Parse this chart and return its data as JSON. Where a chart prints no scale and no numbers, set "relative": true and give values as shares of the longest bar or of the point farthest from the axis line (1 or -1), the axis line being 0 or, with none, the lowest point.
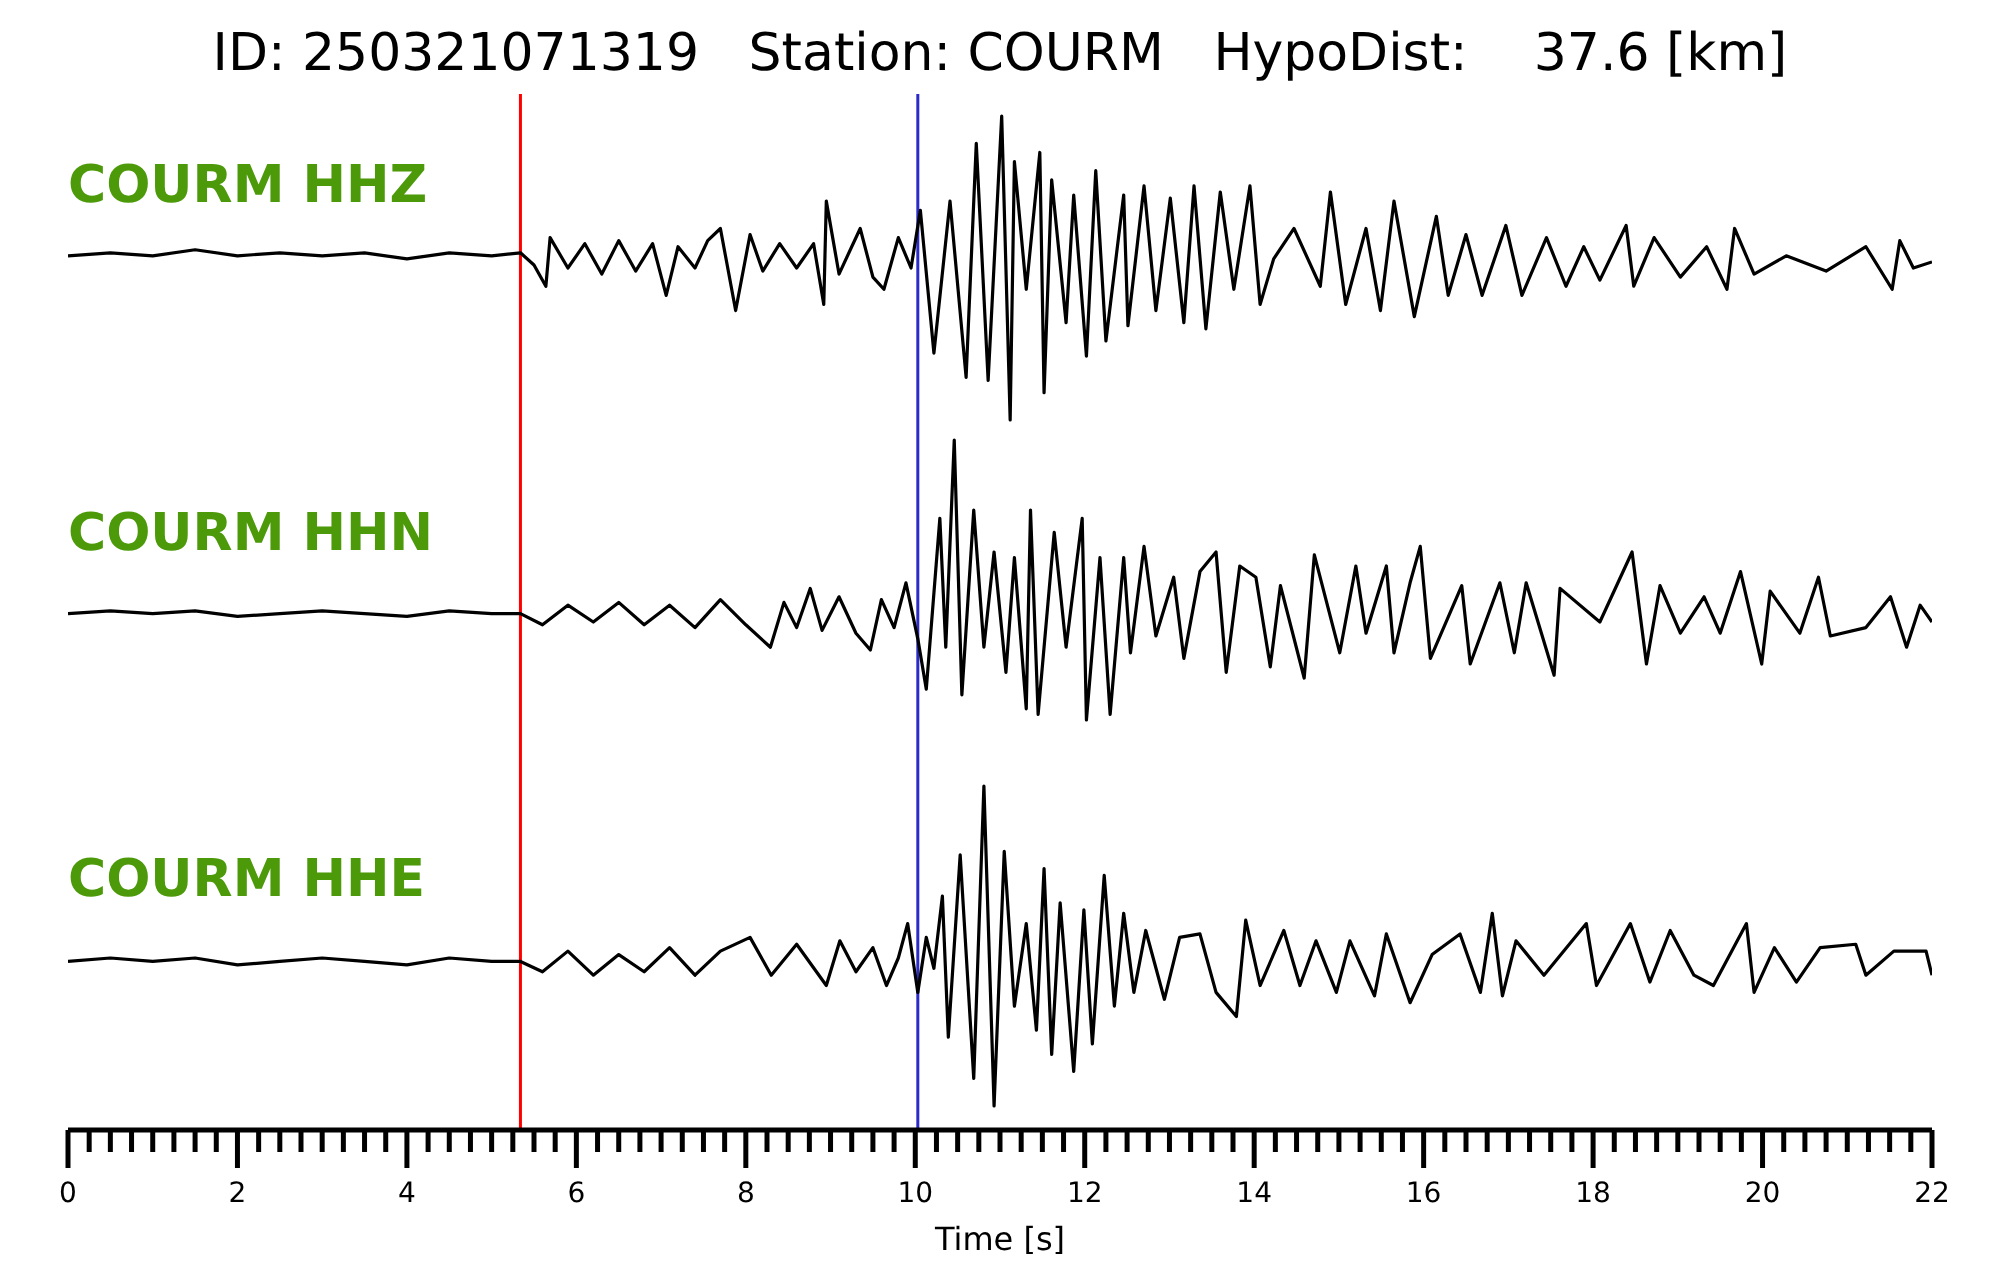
{
  "chart_data": [
    {
      "type": "line",
      "title": "ID: 250321071319   Station: COURM   HypoDist:    37.6 [km]",
      "relative": true,
      "xlim": [
        0,
        22
      ],
      "tick_labels": false,
      "ref_lines": [
        {
          "axis": "x",
          "value": 5.34,
          "color": "#ff0000"
        },
        {
          "axis": "x",
          "value": 10.03,
          "color": "#2b2bc8"
        }
      ],
      "series": [
        {
          "name": "COURM HHZ",
          "color": "#000000",
          "x": [
            0,
            0.5,
            1,
            1.5,
            2,
            2.5,
            3,
            3.5,
            4,
            4.5,
            5,
            5.34,
            5.5,
            5.64,
            5.69,
            5.9,
            6.1,
            6.3,
            6.5,
            6.7,
            6.9,
            7.06,
            7.2,
            7.4,
            7.55,
            7.7,
            7.88,
            8.05,
            8.2,
            8.4,
            8.6,
            8.8,
            8.92,
            8.95,
            9.1,
            9.35,
            9.5,
            9.63,
            9.8,
            9.95,
            10.06,
            10.22,
            10.41,
            10.6,
            10.72,
            10.86,
            11.02,
            11.12,
            11.17,
            11.31,
            11.47,
            11.52,
            11.61,
            11.78,
            11.87,
            12.02,
            12.13,
            12.25,
            12.46,
            12.51,
            12.7,
            12.84,
            13.01,
            13.17,
            13.29,
            13.43,
            13.6,
            13.76,
            13.95,
            14.07,
            14.23,
            14.47,
            14.78,
            14.9,
            15.08,
            15.32,
            15.49,
            15.65,
            15.89,
            16.15,
            16.29,
            16.5,
            16.69,
            16.97,
            17.16,
            17.45,
            17.68,
            17.89,
            18.08,
            18.39,
            18.48,
            18.72,
            19.03,
            19.34,
            19.58,
            19.67,
            19.9,
            20.28,
            20.75,
            21.22,
            21.53,
            21.62,
            21.78,
            22
          ],
          "values": [
            0.54,
            0.55,
            0.54,
            0.56,
            0.54,
            0.55,
            0.54,
            0.55,
            0.53,
            0.55,
            0.54,
            0.55,
            0.51,
            0.44,
            0.6,
            0.5,
            0.58,
            0.48,
            0.59,
            0.49,
            0.58,
            0.41,
            0.57,
            0.5,
            0.59,
            0.63,
            0.36,
            0.61,
            0.49,
            0.58,
            0.5,
            0.58,
            0.38,
            0.72,
            0.48,
            0.63,
            0.47,
            0.43,
            0.6,
            0.5,
            0.69,
            0.22,
            0.72,
            0.14,
            0.91,
            0.13,
            1,
            0,
            0.85,
            0.43,
            0.88,
            0.09,
            0.79,
            0.32,
            0.74,
            0.21,
            0.82,
            0.26,
            0.74,
            0.31,
            0.77,
            0.36,
            0.73,
            0.32,
            0.77,
            0.3,
            0.75,
            0.43,
            0.77,
            0.38,
            0.53,
            0.63,
            0.44,
            0.75,
            0.38,
            0.63,
            0.36,
            0.72,
            0.34,
            0.67,
            0.41,
            0.61,
            0.41,
            0.64,
            0.41,
            0.6,
            0.44,
            0.57,
            0.46,
            0.64,
            0.44,
            0.6,
            0.47,
            0.57,
            0.43,
            0.63,
            0.48,
            0.54,
            0.49,
            0.57,
            0.43,
            0.59,
            0.5,
            0.52
          ]
        }
      ]
    },
    {
      "type": "line",
      "relative": true,
      "xlim": [
        0,
        22
      ],
      "tick_labels": false,
      "ref_lines": [
        {
          "axis": "x",
          "value": 5.34,
          "color": "#ff0000"
        },
        {
          "axis": "x",
          "value": 10.03,
          "color": "#2b2bc8"
        }
      ],
      "series": [
        {
          "name": "COURM HHN",
          "color": "#000000",
          "x": [
            0,
            0.5,
            1,
            1.5,
            2,
            2.5,
            3,
            3.5,
            4,
            4.5,
            5,
            5.34,
            5.6,
            5.9,
            6.2,
            6.5,
            6.8,
            7.1,
            7.4,
            7.7,
            8.0,
            8.29,
            8.45,
            8.6,
            8.76,
            8.9,
            9.1,
            9.3,
            9.47,
            9.6,
            9.75,
            9.89,
            10.03,
            10.13,
            10.29,
            10.36,
            10.46,
            10.55,
            10.69,
            10.81,
            10.93,
            11.07,
            11.17,
            11.31,
            11.36,
            11.45,
            11.64,
            11.78,
            11.97,
            12.02,
            12.18,
            12.3,
            12.46,
            12.54,
            12.7,
            12.84,
            13.05,
            13.17,
            13.36,
            13.55,
            13.67,
            13.83,
            14.02,
            14.19,
            14.31,
            14.59,
            14.71,
            15.01,
            15.2,
            15.32,
            15.56,
            15.65,
            15.84,
            15.96,
            16.08,
            16.45,
            16.55,
            16.9,
            17.07,
            17.21,
            17.54,
            17.61,
            18.08,
            18.46,
            18.63,
            18.79,
            19.03,
            19.31,
            19.5,
            19.74,
            19.99,
            20.09,
            20.44,
            20.66,
            20.8,
            21.22,
            21.51,
            21.7,
            21.86,
            22
          ],
          "values": [
            0.38,
            0.39,
            0.38,
            0.39,
            0.37,
            0.38,
            0.39,
            0.38,
            0.37,
            0.39,
            0.38,
            0.38,
            0.34,
            0.41,
            0.35,
            0.42,
            0.34,
            0.41,
            0.33,
            0.43,
            0.34,
            0.26,
            0.42,
            0.33,
            0.47,
            0.32,
            0.44,
            0.31,
            0.25,
            0.43,
            0.33,
            0.49,
            0.29,
            0.11,
            0.72,
            0.26,
            1,
            0.09,
            0.75,
            0.26,
            0.6,
            0.17,
            0.58,
            0.04,
            0.75,
            0.02,
            0.67,
            0.26,
            0.72,
            0,
            0.58,
            0.02,
            0.58,
            0.24,
            0.62,
            0.3,
            0.51,
            0.22,
            0.53,
            0.6,
            0.17,
            0.55,
            0.51,
            0.19,
            0.48,
            0.15,
            0.59,
            0.24,
            0.55,
            0.31,
            0.55,
            0.24,
            0.49,
            0.62,
            0.22,
            0.48,
            0.2,
            0.49,
            0.24,
            0.49,
            0.16,
            0.47,
            0.35,
            0.6,
            0.2,
            0.48,
            0.31,
            0.44,
            0.31,
            0.53,
            0.2,
            0.46,
            0.31,
            0.51,
            0.3,
            0.33,
            0.44,
            0.26,
            0.41,
            0.35
          ]
        }
      ]
    },
    {
      "type": "line",
      "relative": true,
      "xlabel": "Time [s]",
      "xlim": [
        0,
        22
      ],
      "tick_labels": "x",
      "xticks": [
        0,
        {
          "value": 0.25,
          "label": null
        },
        {
          "value": 0.5,
          "label": null
        },
        {
          "value": 0.75,
          "label": null
        },
        {
          "value": 1,
          "label": null
        },
        {
          "value": 1.25,
          "label": null
        },
        {
          "value": 1.5,
          "label": null
        },
        {
          "value": 1.75,
          "label": null
        },
        2,
        {
          "value": 2.25,
          "label": null
        },
        {
          "value": 2.5,
          "label": null
        },
        {
          "value": 2.75,
          "label": null
        },
        {
          "value": 3,
          "label": null
        },
        {
          "value": 3.25,
          "label": null
        },
        {
          "value": 3.5,
          "label": null
        },
        {
          "value": 3.75,
          "label": null
        },
        4,
        {
          "value": 4.25,
          "label": null
        },
        {
          "value": 4.5,
          "label": null
        },
        {
          "value": 4.75,
          "label": null
        },
        {
          "value": 5,
          "label": null
        },
        {
          "value": 5.25,
          "label": null
        },
        {
          "value": 5.5,
          "label": null
        },
        {
          "value": 5.75,
          "label": null
        },
        6,
        {
          "value": 6.25,
          "label": null
        },
        {
          "value": 6.5,
          "label": null
        },
        {
          "value": 6.75,
          "label": null
        },
        {
          "value": 7,
          "label": null
        },
        {
          "value": 7.25,
          "label": null
        },
        {
          "value": 7.5,
          "label": null
        },
        {
          "value": 7.75,
          "label": null
        },
        8,
        {
          "value": 8.25,
          "label": null
        },
        {
          "value": 8.5,
          "label": null
        },
        {
          "value": 8.75,
          "label": null
        },
        {
          "value": 9,
          "label": null
        },
        {
          "value": 9.25,
          "label": null
        },
        {
          "value": 9.5,
          "label": null
        },
        {
          "value": 9.75,
          "label": null
        },
        10,
        {
          "value": 10.25,
          "label": null
        },
        {
          "value": 10.5,
          "label": null
        },
        {
          "value": 10.75,
          "label": null
        },
        {
          "value": 11,
          "label": null
        },
        {
          "value": 11.25,
          "label": null
        },
        {
          "value": 11.5,
          "label": null
        },
        {
          "value": 11.75,
          "label": null
        },
        12,
        {
          "value": 12.25,
          "label": null
        },
        {
          "value": 12.5,
          "label": null
        },
        {
          "value": 12.75,
          "label": null
        },
        {
          "value": 13,
          "label": null
        },
        {
          "value": 13.25,
          "label": null
        },
        {
          "value": 13.5,
          "label": null
        },
        {
          "value": 13.75,
          "label": null
        },
        14,
        {
          "value": 14.25,
          "label": null
        },
        {
          "value": 14.5,
          "label": null
        },
        {
          "value": 14.75,
          "label": null
        },
        {
          "value": 15,
          "label": null
        },
        {
          "value": 15.25,
          "label": null
        },
        {
          "value": 15.5,
          "label": null
        },
        {
          "value": 15.75,
          "label": null
        },
        16,
        {
          "value": 16.25,
          "label": null
        },
        {
          "value": 16.5,
          "label": null
        },
        {
          "value": 16.75,
          "label": null
        },
        {
          "value": 17,
          "label": null
        },
        {
          "value": 17.25,
          "label": null
        },
        {
          "value": 17.5,
          "label": null
        },
        {
          "value": 17.75,
          "label": null
        },
        18,
        {
          "value": 18.25,
          "label": null
        },
        {
          "value": 18.5,
          "label": null
        },
        {
          "value": 18.75,
          "label": null
        },
        {
          "value": 19,
          "label": null
        },
        {
          "value": 19.25,
          "label": null
        },
        {
          "value": 19.5,
          "label": null
        },
        {
          "value": 19.75,
          "label": null
        },
        20,
        {
          "value": 20.25,
          "label": null
        },
        {
          "value": 20.5,
          "label": null
        },
        {
          "value": 20.75,
          "label": null
        },
        {
          "value": 21,
          "label": null
        },
        {
          "value": 21.25,
          "label": null
        },
        {
          "value": 21.5,
          "label": null
        },
        {
          "value": 21.75,
          "label": null
        },
        22
      ],
      "ref_lines": [
        {
          "axis": "x",
          "value": 5.34,
          "color": "#ff0000"
        },
        {
          "axis": "x",
          "value": 10.03,
          "color": "#2b2bc8"
        }
      ],
      "series": [
        {
          "name": "COURM HHE",
          "color": "#000000",
          "x": [
            0,
            0.5,
            1,
            1.5,
            2,
            2.5,
            3,
            3.5,
            4,
            4.5,
            5,
            5.34,
            5.6,
            5.9,
            6.2,
            6.5,
            6.8,
            7.1,
            7.4,
            7.7,
            8.05,
            8.3,
            8.6,
            8.95,
            9.11,
            9.3,
            9.5,
            9.66,
            9.8,
            9.91,
            10.03,
            10.13,
            10.22,
            10.32,
            10.39,
            10.53,
            10.69,
            10.81,
            10.93,
            11.05,
            11.17,
            11.31,
            11.43,
            11.52,
            11.61,
            11.71,
            11.87,
            11.99,
            12.09,
            12.23,
            12.35,
            12.46,
            12.58,
            12.72,
            12.94,
            13.12,
            13.36,
            13.55,
            13.79,
            13.9,
            14.07,
            14.35,
            14.54,
            14.73,
            14.97,
            15.13,
            15.42,
            15.56,
            15.84,
            16.1,
            16.43,
            16.67,
            16.81,
            16.93,
            17.09,
            17.42,
            17.92,
            18.04,
            18.44,
            18.67,
            18.91,
            19.19,
            19.42,
            19.81,
            19.9,
            20.14,
            20.4,
            20.68,
            21.1,
            21.22,
            21.55,
            21.93,
            22
          ],
          "values": [
            0.49,
            0.5,
            0.49,
            0.5,
            0.48,
            0.49,
            0.5,
            0.49,
            0.48,
            0.5,
            0.49,
            0.49,
            0.46,
            0.52,
            0.45,
            0.51,
            0.46,
            0.53,
            0.45,
            0.52,
            0.56,
            0.45,
            0.54,
            0.42,
            0.55,
            0.46,
            0.53,
            0.42,
            0.5,
            0.6,
            0.4,
            0.56,
            0.47,
            0.68,
            0.27,
            0.8,
            0.15,
            1,
            0.07,
            0.81,
            0.36,
            0.6,
            0.29,
            0.76,
            0.22,
            0.66,
            0.17,
            0.64,
            0.25,
            0.74,
            0.36,
            0.63,
            0.4,
            0.58,
            0.38,
            0.56,
            0.57,
            0.4,
            0.33,
            0.61,
            0.42,
            0.58,
            0.42,
            0.55,
            0.4,
            0.55,
            0.39,
            0.57,
            0.37,
            0.51,
            0.57,
            0.4,
            0.63,
            0.39,
            0.55,
            0.45,
            0.6,
            0.42,
            0.6,
            0.43,
            0.58,
            0.45,
            0.42,
            0.6,
            0.4,
            0.53,
            0.43,
            0.53,
            0.54,
            0.45,
            0.52,
            0.52,
            0.45
          ]
        }
      ]
    }
  ]
}
